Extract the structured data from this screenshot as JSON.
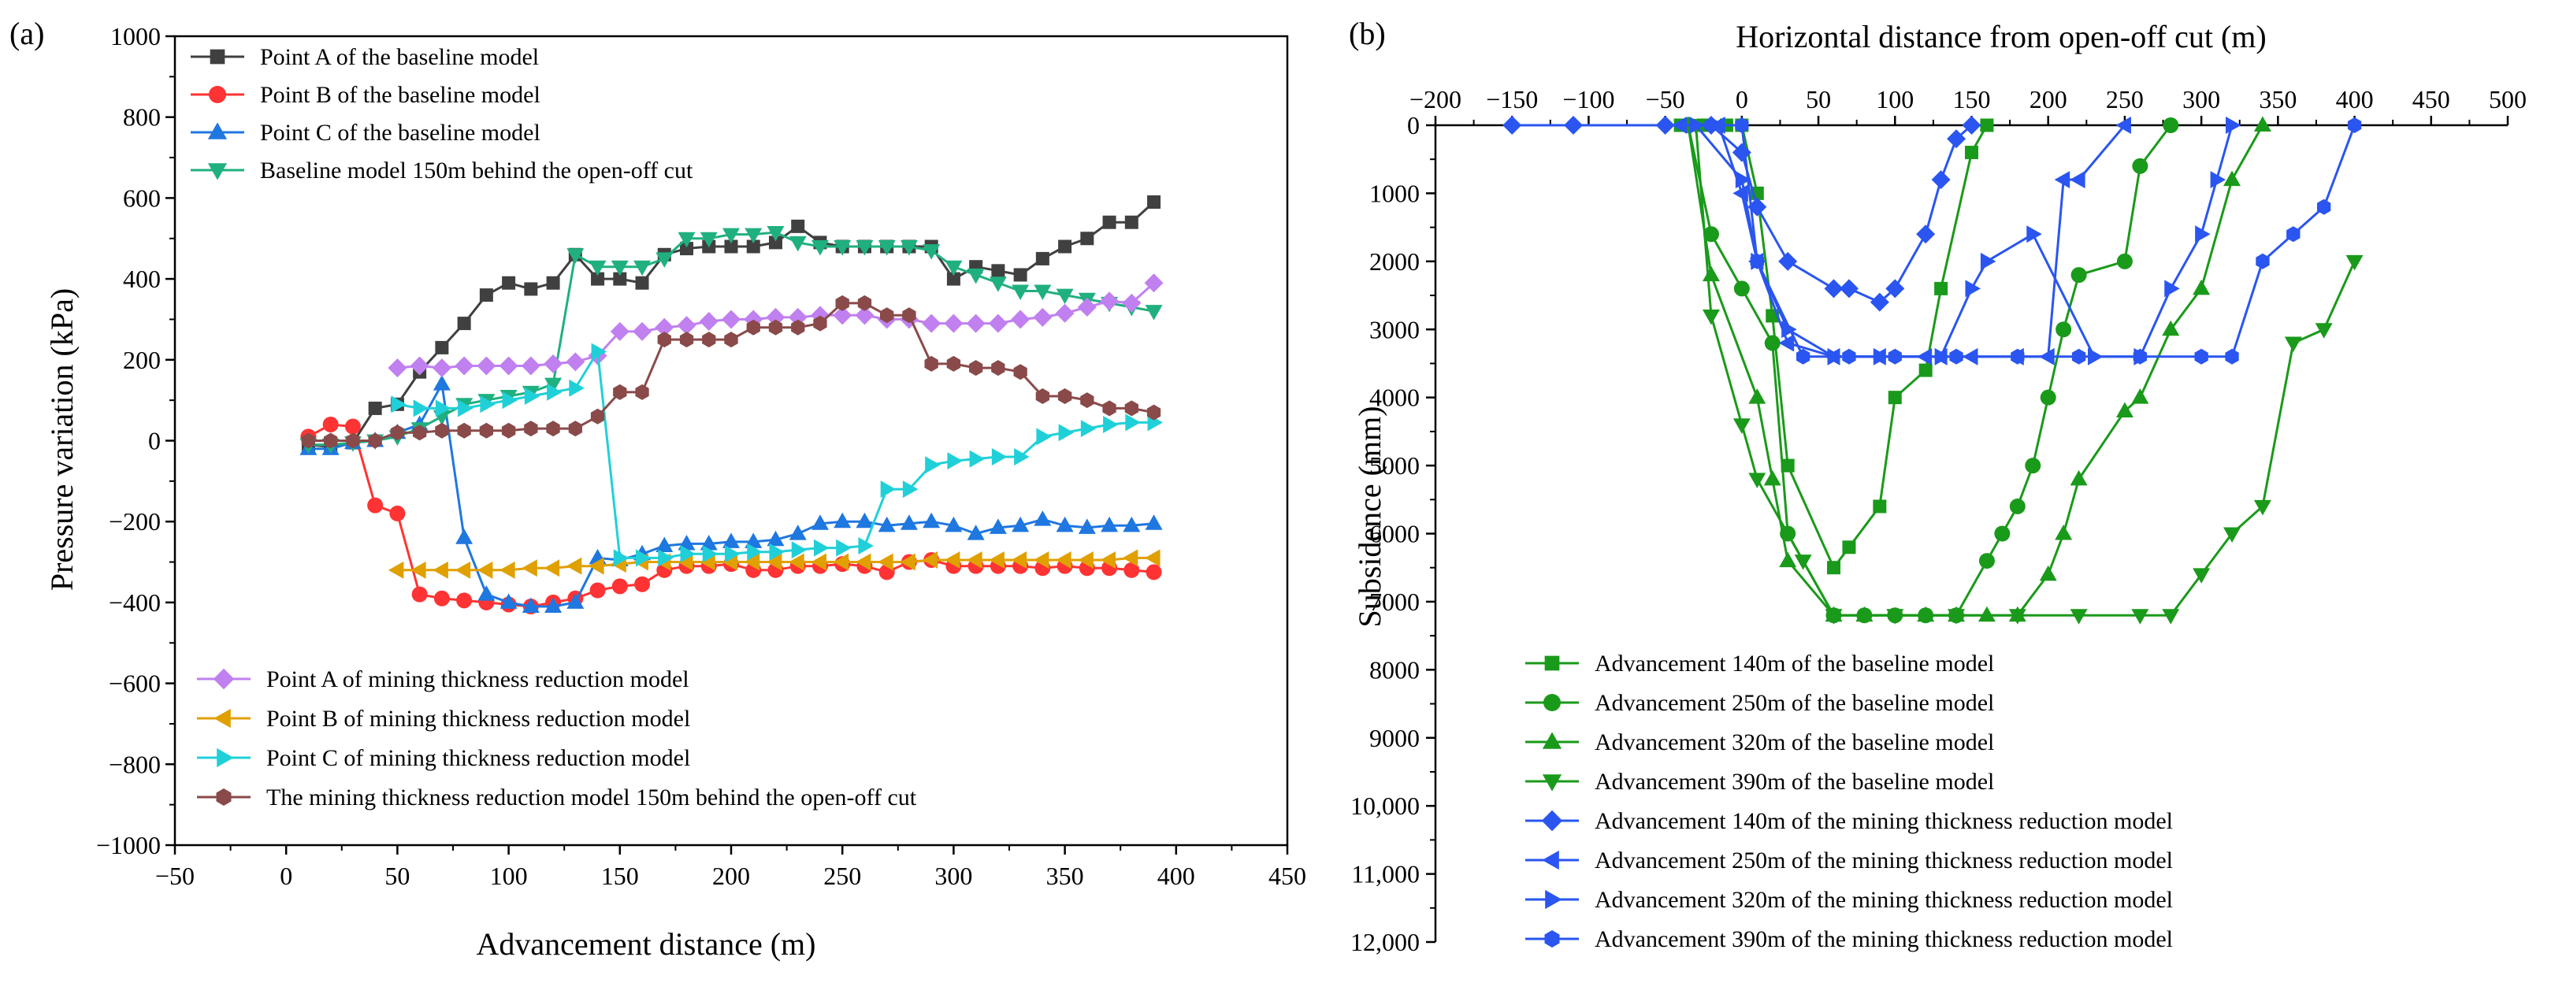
{
  "chart_data": [
    {
      "type": "line",
      "panel_label": "(a)",
      "xlabel": "Advancement distance (m)",
      "ylabel": "Pressure variation (kPa)",
      "xlim": [
        -50,
        450
      ],
      "ylim": [
        -1000,
        1000
      ],
      "xticks": [
        -50,
        0,
        50,
        100,
        150,
        200,
        250,
        300,
        350,
        400,
        450
      ],
      "yticks": [
        -1000,
        -800,
        -600,
        -400,
        -200,
        0,
        200,
        400,
        600,
        800,
        1000
      ],
      "x": [
        10,
        20,
        30,
        40,
        50,
        60,
        70,
        80,
        90,
        100,
        110,
        120,
        130,
        140,
        150,
        160,
        170,
        180,
        190,
        200,
        210,
        220,
        230,
        240,
        250,
        260,
        270,
        280,
        290,
        300,
        310,
        320,
        330,
        340,
        350,
        360,
        370,
        380,
        390
      ],
      "series": [
        {
          "name": "Point A of the baseline model",
          "color": "#404040",
          "marker": "square",
          "values": [
            -10,
            -15,
            -5,
            80,
            90,
            170,
            230,
            290,
            360,
            390,
            375,
            390,
            460,
            400,
            400,
            390,
            460,
            475,
            480,
            480,
            480,
            490,
            530,
            490,
            480,
            480,
            480,
            480,
            480,
            400,
            430,
            420,
            410,
            450,
            480,
            500,
            540,
            540,
            590
          ]
        },
        {
          "name": "Point B of the baseline model",
          "color": "#ff3333",
          "marker": "circle",
          "values": [
            10,
            40,
            35,
            -160,
            -180,
            -380,
            -390,
            -395,
            -400,
            -405,
            -410,
            -400,
            -390,
            -370,
            -360,
            -355,
            -320,
            -310,
            -310,
            -305,
            -320,
            -320,
            -310,
            -310,
            -305,
            -310,
            -325,
            -300,
            -295,
            -310,
            -310,
            -310,
            -310,
            -315,
            -310,
            -315,
            -315,
            -320,
            -325
          ]
        },
        {
          "name": "Point C of the baseline model",
          "color": "#1f77e0",
          "marker": "triangle-up",
          "values": [
            -20,
            -20,
            -5,
            0,
            20,
            40,
            140,
            -240,
            -380,
            -400,
            -410,
            -410,
            -400,
            -290,
            -295,
            -280,
            -260,
            -255,
            -255,
            -250,
            -250,
            -245,
            -230,
            -205,
            -200,
            -200,
            -210,
            -205,
            -200,
            -210,
            -230,
            -215,
            -210,
            -195,
            -210,
            -215,
            -210,
            -210,
            -205
          ]
        },
        {
          "name": "Baseline model 150m behind the open-off cut",
          "color": "#20b080",
          "marker": "triangle-down",
          "values": [
            -10,
            -10,
            -5,
            0,
            10,
            30,
            60,
            90,
            100,
            110,
            120,
            140,
            460,
            430,
            430,
            430,
            450,
            500,
            500,
            510,
            510,
            515,
            490,
            480,
            480,
            480,
            480,
            480,
            470,
            430,
            410,
            390,
            370,
            370,
            360,
            350,
            340,
            330,
            320
          ]
        },
        {
          "name": "Point A of mining thickness reduction model",
          "color": "#c080f0",
          "marker": "diamond",
          "values": [
            null,
            null,
            null,
            null,
            180,
            185,
            180,
            185,
            185,
            185,
            185,
            190,
            195,
            210,
            270,
            270,
            280,
            285,
            295,
            300,
            300,
            305,
            305,
            310,
            310,
            310,
            300,
            300,
            290,
            290,
            290,
            290,
            300,
            305,
            315,
            330,
            345,
            340,
            390
          ]
        },
        {
          "name": "Point B of mining thickness reduction model",
          "color": "#e0a000",
          "marker": "triangle-left",
          "values": [
            null,
            null,
            null,
            null,
            -320,
            -320,
            -320,
            -320,
            -320,
            -320,
            -315,
            -315,
            -310,
            -310,
            -305,
            -300,
            -300,
            -300,
            -300,
            -300,
            -300,
            -300,
            -300,
            -300,
            -300,
            -300,
            -300,
            -300,
            -295,
            -295,
            -295,
            -295,
            -295,
            -295,
            -295,
            -295,
            -295,
            -290,
            -290
          ]
        },
        {
          "name": "Point C of mining thickness reduction model",
          "color": "#20d0d8",
          "marker": "triangle-right",
          "values": [
            null,
            null,
            null,
            null,
            90,
            80,
            80,
            80,
            90,
            100,
            110,
            120,
            130,
            220,
            -290,
            -290,
            -290,
            -280,
            -280,
            -280,
            -275,
            -275,
            -270,
            -265,
            -265,
            -260,
            -120,
            -120,
            -60,
            -50,
            -45,
            -40,
            -40,
            10,
            20,
            30,
            40,
            45,
            45
          ]
        },
        {
          "name": "The mining thickness reduction model 150m behind the open-off cut",
          "color": "#8a4a4a",
          "marker": "hexagon",
          "values": [
            0,
            0,
            0,
            0,
            20,
            20,
            25,
            25,
            25,
            25,
            30,
            30,
            30,
            60,
            120,
            120,
            250,
            250,
            250,
            250,
            280,
            280,
            280,
            290,
            340,
            340,
            310,
            310,
            190,
            190,
            180,
            180,
            170,
            110,
            110,
            100,
            80,
            80,
            70
          ]
        }
      ],
      "legend": [
        "top-left",
        "bottom-left"
      ]
    },
    {
      "type": "line",
      "panel_label": "(b)",
      "xlabel": "Horizontal distance from open-off cut (m)",
      "ylabel": "Subsidence (mm)",
      "xlim": [
        -200,
        500
      ],
      "ylim": [
        0,
        12000
      ],
      "y_inverted": true,
      "x_axis_position": "top",
      "xticks": [
        -200,
        -150,
        -100,
        -50,
        0,
        50,
        100,
        150,
        200,
        250,
        300,
        350,
        400,
        450,
        500
      ],
      "xtick_labels": [
        "−200",
        "−150",
        "−100",
        "−50",
        "0",
        "50",
        "100",
        "150",
        "200",
        "250",
        "300",
        "350",
        "400",
        "450",
        "500"
      ],
      "yticks": [
        0,
        1000,
        2000,
        3000,
        4000,
        5000,
        6000,
        7000,
        8000,
        9000,
        10000,
        11000,
        12000
      ],
      "ytick_labels": [
        "0",
        "1000",
        "2000",
        "3000",
        "4000",
        "5000",
        "6000",
        "7000",
        "8000",
        "9000",
        "10,000",
        "11,000",
        "12,000"
      ],
      "series": [
        {
          "name": "Advancement 140m of the baseline model",
          "color": "#1a9a1a",
          "marker": "square",
          "x": [
            -40,
            -25,
            -10,
            0,
            10,
            20,
            30,
            60,
            70,
            90,
            100,
            120,
            130,
            150,
            160
          ],
          "y": [
            0,
            0,
            0,
            0,
            1000,
            2800,
            5000,
            6500,
            6200,
            5600,
            4000,
            3600,
            2400,
            400,
            0
          ]
        },
        {
          "name": "Advancement 250m of the baseline model",
          "color": "#1a9a1a",
          "marker": "circle",
          "x": [
            -35,
            -20,
            0,
            20,
            30,
            60,
            80,
            100,
            120,
            140,
            160,
            170,
            180,
            190,
            200,
            210,
            220,
            250,
            260,
            280
          ],
          "y": [
            0,
            1600,
            2400,
            3200,
            6000,
            7200,
            7200,
            7200,
            7200,
            7200,
            6400,
            6000,
            5600,
            5000,
            4000,
            3000,
            2200,
            2000,
            600,
            0
          ]
        },
        {
          "name": "Advancement 320m of the baseline model",
          "color": "#1a9a1a",
          "marker": "triangle-up",
          "x": [
            -35,
            -20,
            10,
            20,
            30,
            60,
            80,
            120,
            140,
            160,
            180,
            200,
            210,
            220,
            250,
            260,
            280,
            300,
            320,
            340
          ],
          "y": [
            0,
            2200,
            4000,
            5200,
            6400,
            7200,
            7200,
            7200,
            7200,
            7200,
            7200,
            6600,
            6000,
            5200,
            4200,
            4000,
            3000,
            2400,
            800,
            0
          ]
        },
        {
          "name": "Advancement 390m of the baseline model",
          "color": "#1a9a1a",
          "marker": "triangle-down",
          "x": [
            -30,
            -20,
            0,
            10,
            40,
            60,
            100,
            140,
            180,
            220,
            260,
            280,
            300,
            320,
            340,
            360,
            380,
            400
          ],
          "y": [
            0,
            2800,
            4400,
            5200,
            6400,
            7200,
            7200,
            7200,
            7200,
            7200,
            7200,
            7200,
            6600,
            6000,
            5600,
            3200,
            3000,
            2000
          ]
        },
        {
          "name": "Advancement 140m of the mining thickness reduction model",
          "color": "#2a55f0",
          "marker": "diamond",
          "x": [
            -150,
            -110,
            -50,
            -20,
            0,
            10,
            30,
            60,
            70,
            90,
            100,
            120,
            130,
            140,
            150
          ],
          "y": [
            0,
            0,
            0,
            0,
            400,
            1200,
            2000,
            2400,
            2400,
            2600,
            2400,
            1600,
            800,
            200,
            0
          ]
        },
        {
          "name": "Advancement 250m of the mining thickness reduction model",
          "color": "#2a55f0",
          "marker": "triangle-left",
          "x": [
            -40,
            -15,
            0,
            10,
            30,
            60,
            90,
            120,
            130,
            150,
            180,
            200,
            210,
            220,
            250
          ],
          "y": [
            0,
            0,
            1000,
            2000,
            3200,
            3400,
            3400,
            3400,
            3400,
            3400,
            3400,
            3400,
            800,
            800,
            0
          ]
        },
        {
          "name": "Advancement 320m of the mining thickness reduction model",
          "color": "#2a55f0",
          "marker": "triangle-right",
          "x": [
            -30,
            0,
            10,
            30,
            60,
            90,
            130,
            150,
            160,
            190,
            230,
            260,
            280,
            300,
            310,
            320
          ],
          "y": [
            0,
            800,
            2000,
            3000,
            3400,
            3400,
            3400,
            2400,
            2000,
            1600,
            3400,
            3400,
            2400,
            1600,
            800,
            0
          ]
        },
        {
          "name": "Advancement 390m of the mining thickness reduction model",
          "color": "#2a55f0",
          "marker": "hexagon",
          "x": [
            -20,
            0,
            10,
            40,
            70,
            100,
            140,
            180,
            220,
            260,
            300,
            320,
            340,
            360,
            380,
            400
          ],
          "y": [
            0,
            0,
            2000,
            3400,
            3400,
            3400,
            3400,
            3400,
            3400,
            3400,
            3400,
            3400,
            2000,
            1600,
            1200,
            0
          ]
        }
      ],
      "legend": [
        "bottom-left"
      ]
    }
  ]
}
